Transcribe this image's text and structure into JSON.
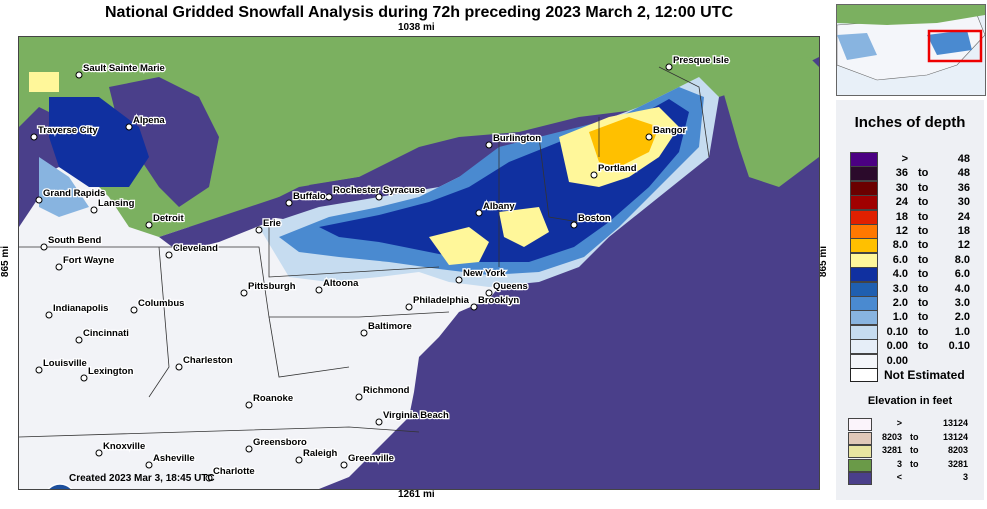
{
  "title": "National Gridded Snowfall Analysis during 72h preceding 2023 March 2, 12:00 UTC",
  "dims": {
    "top": "1038 mi",
    "bottom": "1261 mi",
    "left": "865 mi",
    "right": "865 mi"
  },
  "created": "Created 2023 Mar 3, 18:45 UTC",
  "logo": "noaa-logo",
  "cities": [
    "Sault Sainte Marie",
    "Presque Isle",
    "Traverse City",
    "Alpena",
    "Burlington",
    "Bangor",
    "Grand Rapids",
    "Rochester",
    "Syracuse",
    "Portland",
    "Buffalo",
    "Lansing",
    "Detroit",
    "Erie",
    "Albany",
    "Boston",
    "South Bend",
    "Cleveland",
    "Fort Wayne",
    "New York",
    "Queens",
    "Pittsburgh",
    "Altoona",
    "Indianapolis",
    "Columbus",
    "Philadelphia",
    "Brooklyn",
    "Cincinnati",
    "Baltimore",
    "Louisville",
    "Charleston",
    "Lexington",
    "Richmond",
    "Roanoke",
    "Virginia Beach",
    "Knoxville",
    "Greensboro",
    "Asheville",
    "Raleigh",
    "Greenville",
    "Charlotte"
  ],
  "legend": {
    "title": "Inches of depth",
    "rows": [
      {
        "lo": ">",
        "to": "",
        "hi": "48",
        "color": "#4b0082"
      },
      {
        "lo": "36",
        "to": "to",
        "hi": "48",
        "color": "#2b0a2b"
      },
      {
        "lo": "30",
        "to": "to",
        "hi": "36",
        "color": "#6b0000"
      },
      {
        "lo": "24",
        "to": "to",
        "hi": "30",
        "color": "#a00000"
      },
      {
        "lo": "18",
        "to": "to",
        "hi": "24",
        "color": "#e02000"
      },
      {
        "lo": "12",
        "to": "to",
        "hi": "18",
        "color": "#ff7800"
      },
      {
        "lo": "8.0",
        "to": "to",
        "hi": "12",
        "color": "#ffc000"
      },
      {
        "lo": "6.0",
        "to": "to",
        "hi": "8.0",
        "color": "#fff79a"
      },
      {
        "lo": "4.0",
        "to": "to",
        "hi": "6.0",
        "color": "#1030a0"
      },
      {
        "lo": "3.0",
        "to": "to",
        "hi": "4.0",
        "color": "#1f5fb0"
      },
      {
        "lo": "2.0",
        "to": "to",
        "hi": "3.0",
        "color": "#4a8ad0"
      },
      {
        "lo": "1.0",
        "to": "to",
        "hi": "2.0",
        "color": "#88b4e0"
      },
      {
        "lo": "0.10",
        "to": "to",
        "hi": "1.0",
        "color": "#c6dcf0"
      },
      {
        "lo": "0.00",
        "to": "to",
        "hi": "0.10",
        "color": "#e6eef8"
      },
      {
        "lo": "0.00",
        "to": "",
        "hi": "",
        "color": "#f4f6fa"
      }
    ],
    "not_estimated": "Not Estimated",
    "elevation_title": "Elevation in feet",
    "elevation_rows": [
      {
        "lo": ">",
        "to": "",
        "hi": "13124",
        "color": "#fbf4fb"
      },
      {
        "lo": "8203",
        "to": "to",
        "hi": "13124",
        "color": "#e0c8b8"
      },
      {
        "lo": "3281",
        "to": "to",
        "hi": "8203",
        "color": "#e8e4a0"
      },
      {
        "lo": "3",
        "to": "to",
        "hi": "3281",
        "color": "#6a9a48"
      },
      {
        "lo": "<",
        "to": "",
        "hi": "3",
        "color": "#4a3f8a"
      }
    ]
  }
}
